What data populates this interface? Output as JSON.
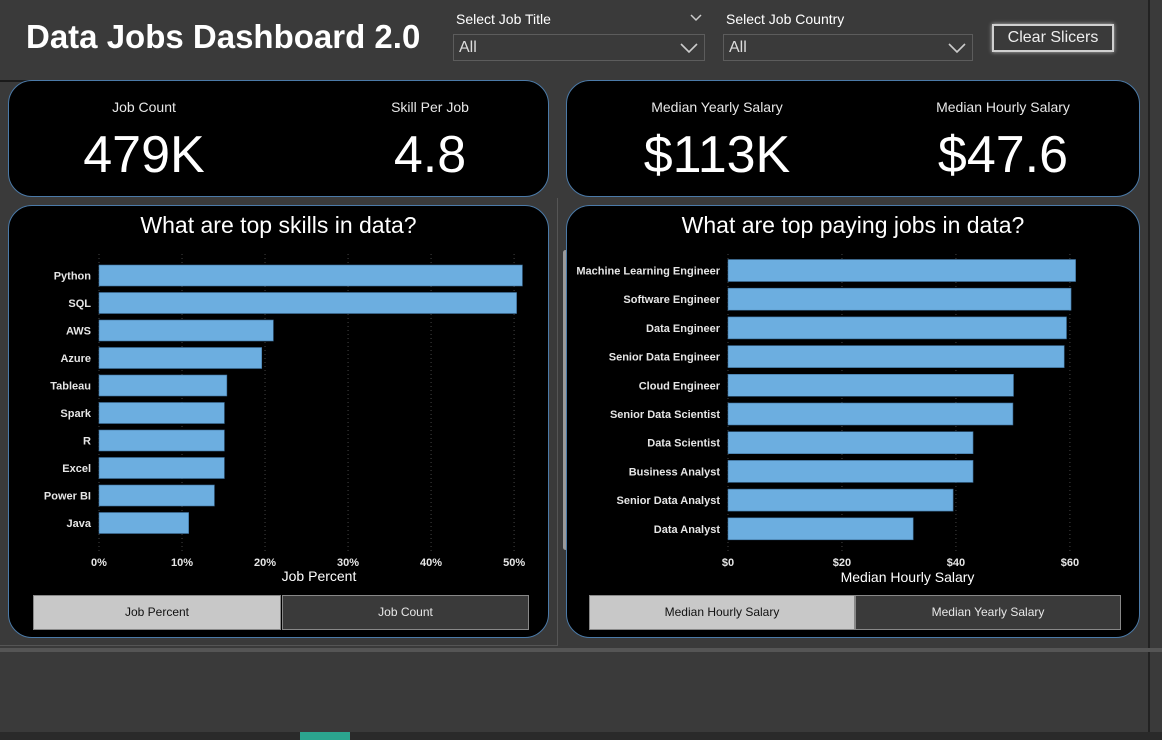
{
  "title": "Data Jobs Dashboard 2.0",
  "slicers": {
    "job_title_label": "Select Job Title",
    "job_title_value": "All",
    "job_country_label": "Select Job Country",
    "job_country_value": "All",
    "clear_label": "Clear Slicers"
  },
  "kpis": {
    "job_count_label": "Job Count",
    "job_count_value": "479K",
    "skill_per_job_label": "Skill Per Job",
    "skill_per_job_value": "4.8",
    "median_yearly_label": "Median Yearly Salary",
    "median_yearly_value": "$113K",
    "median_hourly_label": "Median Hourly Salary",
    "median_hourly_value": "$47.6"
  },
  "skills_chart": {
    "title": "What are top skills in data?",
    "toggle_active": "Job Percent",
    "toggle_inactive": "Job Count"
  },
  "pay_chart": {
    "title": "What are top paying jobs in data?",
    "toggle_active": "Median Hourly Salary",
    "toggle_inactive": "Median Yearly Salary"
  },
  "colors": {
    "bar": "#6caee0",
    "card_border": "#4b7aa8"
  },
  "chart_data": [
    {
      "type": "bar",
      "orientation": "horizontal",
      "title": "What are top skills in data?",
      "xlabel": "Job Percent",
      "ylabel": "",
      "categories": [
        "Python",
        "SQL",
        "AWS",
        "Azure",
        "Tableau",
        "Spark",
        "R",
        "Excel",
        "Power BI",
        "Java"
      ],
      "values": [
        51,
        50.3,
        21,
        19.6,
        15.4,
        15.1,
        15.1,
        15.1,
        13.9,
        10.8
      ],
      "xlim": [
        0,
        53
      ],
      "ticks": [
        0,
        10,
        20,
        30,
        40,
        50
      ],
      "tick_labels": [
        "0%",
        "10%",
        "20%",
        "30%",
        "40%",
        "50%"
      ],
      "grid": true
    },
    {
      "type": "bar",
      "orientation": "horizontal",
      "title": "What are top paying jobs in data?",
      "xlabel": "Median Hourly Salary",
      "ylabel": "",
      "categories": [
        "Machine Learning Engineer",
        "Software Engineer",
        "Data Engineer",
        "Senior Data Engineer",
        "Cloud Engineer",
        "Senior Data Scientist",
        "Data Scientist",
        "Business Analyst",
        "Senior Data Analyst",
        "Data Analyst"
      ],
      "values": [
        61,
        60.2,
        59.4,
        59,
        50.1,
        50,
        43,
        43,
        39.5,
        32.5
      ],
      "xlim": [
        0,
        63
      ],
      "ticks": [
        0,
        20,
        40,
        60
      ],
      "tick_labels": [
        "$0",
        "$20",
        "$40",
        "$60"
      ],
      "grid": true
    }
  ]
}
